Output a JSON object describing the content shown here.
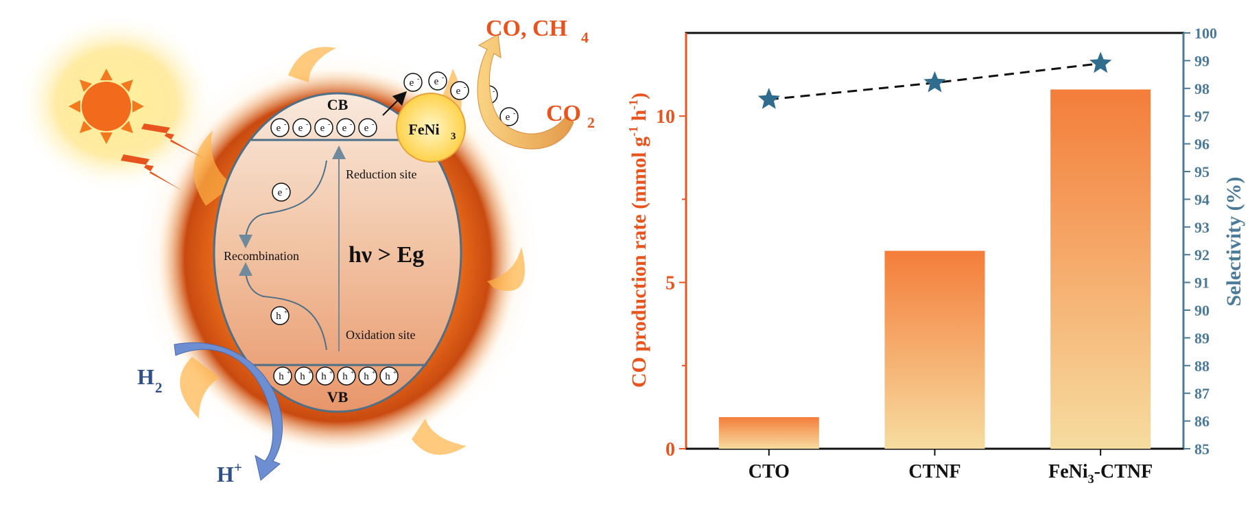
{
  "diagram": {
    "cb_label": "CB",
    "vb_label": "VB",
    "cocatalyst_label": "FeNi",
    "cocatalyst_sub": "3",
    "reduction_site": "Reduction site",
    "oxidation_site": "Oxidation site",
    "recombination": "Recombination",
    "excitation": "hν > Eg",
    "electron": "e",
    "electron_sup": "-",
    "hole": "h",
    "hole_sup": "+",
    "product_main": "CO, CH",
    "product_sub": "4",
    "reactant_main": "CO",
    "reactant_sub": "2",
    "h2_main": "H",
    "h2_sub": "2",
    "hplus_main": "H",
    "hplus_sup": "+"
  },
  "colors": {
    "orange": "#e8541e",
    "steel_blue": "#4a7a98",
    "navy": "#2f4f86",
    "bar_top": "#f47d3a",
    "bar_bottom": "#f6dca0"
  },
  "chart_data": {
    "type": "bar",
    "categories": [
      "CTO",
      "CTNF",
      "FeNi3-CTNF"
    ],
    "category_labels": [
      {
        "main": "CTO",
        "sub": "",
        "rest": ""
      },
      {
        "main": "CTNF",
        "sub": "",
        "rest": ""
      },
      {
        "main": "FeNi",
        "sub": "3",
        "rest": "-CTNF"
      }
    ],
    "series": [
      {
        "values": [
          0.95,
          5.95,
          10.8
        ],
        "axis": "left",
        "style": "bar"
      },
      {
        "values": [
          97.6,
          98.2,
          98.9
        ],
        "axis": "right",
        "style": "dashed-line-star"
      }
    ],
    "ylabel": "CO production rate (mmol g",
    "ylabel_sup1": "-1",
    "ylabel_mid": " h",
    "ylabel_sup2": "-1",
    "ylabel_end": ")",
    "y2label": "Selectivity (%)",
    "ylim": [
      0,
      12.5
    ],
    "y2lim": [
      85,
      100
    ],
    "yticks": [
      0,
      5,
      10
    ],
    "y2ticks": [
      85,
      86,
      87,
      88,
      89,
      90,
      91,
      92,
      93,
      94,
      95,
      96,
      97,
      98,
      99,
      100
    ],
    "grid": false
  }
}
